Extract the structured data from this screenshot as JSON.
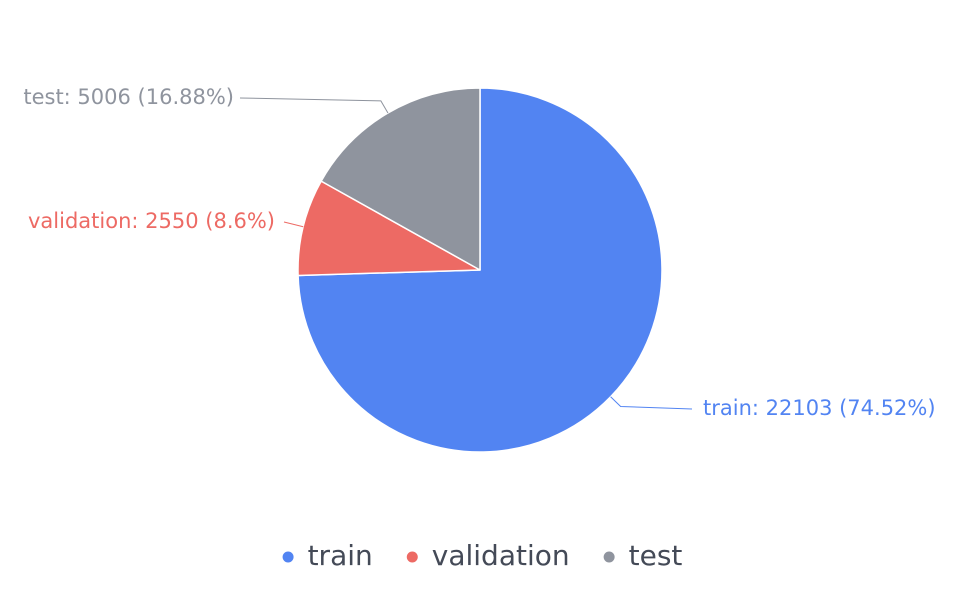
{
  "chart_data": {
    "type": "pie",
    "categories": [
      "train",
      "validation",
      "test"
    ],
    "values": [
      22103,
      2550,
      5006
    ],
    "percentages": [
      "74.52%",
      "8.6%",
      "16.88%"
    ],
    "labels": [
      "train: 22103 (74.52%)",
      "validation: 2550 (8.6%)",
      "test: 5006 (16.88%)"
    ],
    "colors": [
      "#5284f2",
      "#ed6a64",
      "#8f949e"
    ],
    "legend_position": "bottom",
    "legend": [
      "train",
      "validation",
      "test"
    ],
    "title": ""
  }
}
